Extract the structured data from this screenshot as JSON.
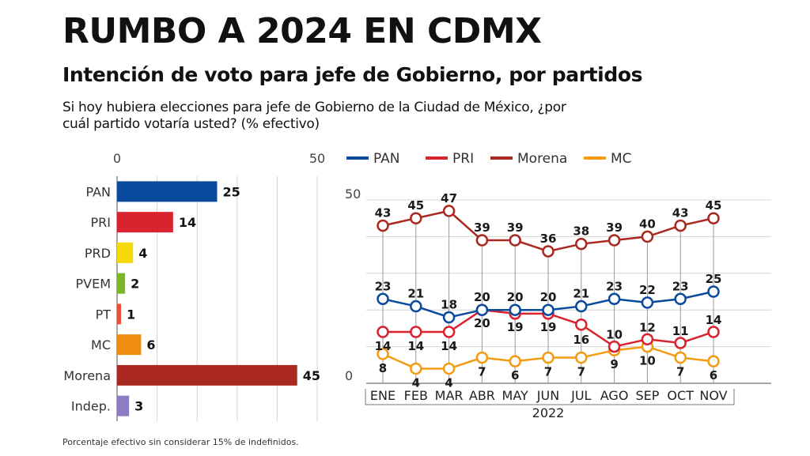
{
  "header": {
    "title": "RUMBO A 2024 EN CDMX",
    "subtitle": "Intención de voto para jefe de Gobierno, por partidos",
    "question": "Si hoy hubiera elecciones para jefe de Gobierno de la Ciudad de México, ¿por cuál partido votaría usted? (% efectivo)"
  },
  "footnote": "Porcentaje efectivo sin considerar 15% de indefinidos.",
  "chart_data": [
    {
      "type": "bar",
      "orientation": "horizontal",
      "categories": [
        "PAN",
        "PRI",
        "PRD",
        "PVEM",
        "PT",
        "MC",
        "Morena",
        "Indep."
      ],
      "values": [
        25,
        14,
        4,
        2,
        1,
        6,
        45,
        3
      ],
      "colors": [
        "#0a4a9c",
        "#d9232f",
        "#f5d90a",
        "#7bb62b",
        "#e8503a",
        "#f28c0f",
        "#a9281f",
        "#8e7cc3"
      ],
      "xlim": [
        0,
        50
      ],
      "ticks": [
        0,
        50
      ],
      "grid": true
    },
    {
      "type": "line",
      "x": [
        "ENE",
        "FEB",
        "MAR",
        "ABR",
        "MAY",
        "JUN",
        "JUL",
        "AGO",
        "SEP",
        "OCT",
        "NOV"
      ],
      "xlabel": "2022",
      "ylim": [
        0,
        50
      ],
      "ticks": [
        0,
        50
      ],
      "grid": true,
      "legend_position": "top",
      "series": [
        {
          "name": "PAN",
          "color": "#0a4a9c",
          "values": [
            23,
            21,
            18,
            20,
            20,
            20,
            21,
            23,
            22,
            23,
            25
          ]
        },
        {
          "name": "PRI",
          "color": "#d9232f",
          "values": [
            14,
            14,
            14,
            20,
            19,
            19,
            16,
            10,
            12,
            11,
            14
          ]
        },
        {
          "name": "Morena",
          "color": "#a9281f",
          "values": [
            43,
            45,
            47,
            39,
            39,
            36,
            38,
            39,
            40,
            43,
            45
          ]
        },
        {
          "name": "MC",
          "color": "#f39c12",
          "values": [
            8,
            4,
            4,
            7,
            6,
            7,
            7,
            9,
            10,
            7,
            6
          ]
        }
      ]
    }
  ]
}
